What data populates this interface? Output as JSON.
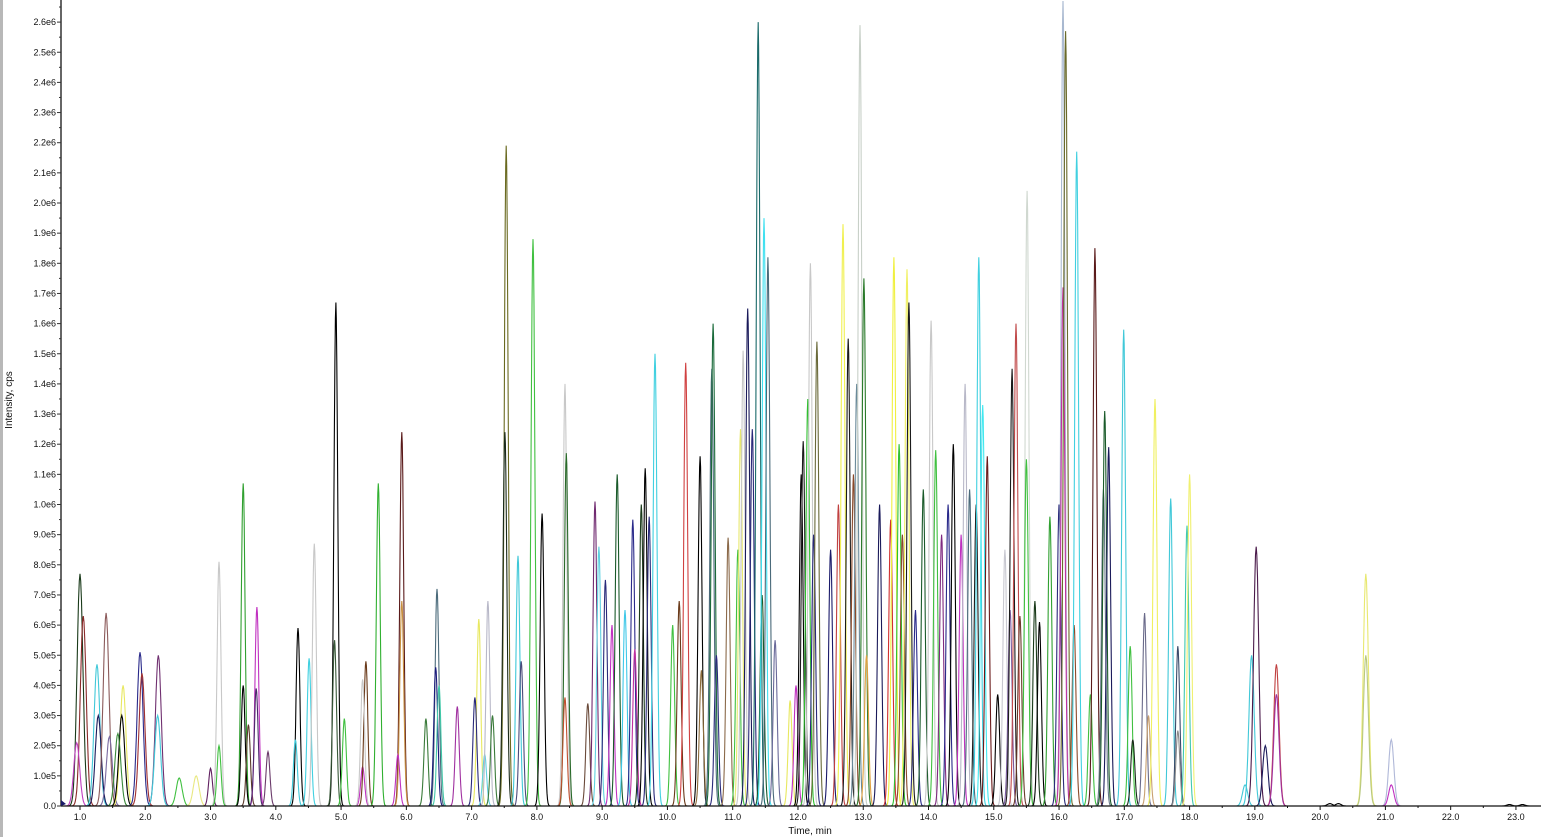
{
  "chart_data": {
    "type": "line",
    "title": "",
    "xlabel": "Time, min",
    "ylabel": "Intensity, cps",
    "xlim": [
      0.69,
      23.4
    ],
    "ylim": [
      0,
      2670000
    ],
    "grid": false,
    "legend": "none",
    "x_ticks": [
      "1.0",
      "2.0",
      "3.0",
      "4.0",
      "5.0",
      "6.0",
      "7.0",
      "8.0",
      "9.0",
      "10.0",
      "11.0",
      "12.0",
      "13.0",
      "14.0",
      "15.0",
      "16.0",
      "17.0",
      "18.0",
      "19.0",
      "20.0",
      "21.0",
      "22.0",
      "23.0"
    ],
    "y_ticks": [
      "0.0",
      "1.0e5",
      "2.0e5",
      "3.0e5",
      "4.0e5",
      "5.0e5",
      "6.0e5",
      "7.0e5",
      "8.0e5",
      "9.0e5",
      "1.0e6",
      "1.1e6",
      "1.2e6",
      "1.3e6",
      "1.4e6",
      "1.5e6",
      "1.6e6",
      "1.7e6",
      "1.8e6",
      "1.9e6",
      "2.0e6",
      "2.1e6",
      "2.2e6",
      "2.3e6",
      "2.4e6",
      "2.5e6",
      "2.6e6"
    ],
    "peaks": [
      {
        "t": 1.0,
        "h": 770000,
        "c": "#1a3a1a"
      },
      {
        "t": 1.05,
        "h": 630000,
        "c": "#8b2a2a"
      },
      {
        "t": 0.95,
        "h": 210000,
        "c": "#c040c0"
      },
      {
        "t": 1.26,
        "h": 470000,
        "c": "#40c8d8"
      },
      {
        "t": 1.28,
        "h": 300000,
        "c": "#1a1a5a"
      },
      {
        "t": 1.4,
        "h": 640000,
        "c": "#8b5a5a"
      },
      {
        "t": 1.45,
        "h": 230000,
        "c": "#7a6aa0"
      },
      {
        "t": 1.66,
        "h": 400000,
        "c": "#e8e860"
      },
      {
        "t": 1.64,
        "h": 300000,
        "c": "#000000"
      },
      {
        "t": 1.58,
        "h": 240000,
        "c": "#3a8a3a"
      },
      {
        "t": 1.92,
        "h": 510000,
        "c": "#2a2a8a"
      },
      {
        "t": 1.95,
        "h": 440000,
        "c": "#a03030"
      },
      {
        "t": 2.2,
        "h": 500000,
        "c": "#703070"
      },
      {
        "t": 2.19,
        "h": 300000,
        "c": "#40c8d8"
      },
      {
        "t": 2.52,
        "h": 93000,
        "c": "#40c040"
      },
      {
        "t": 2.78,
        "h": 100000,
        "c": "#e8e880"
      },
      {
        "t": 3.0,
        "h": 125000,
        "c": "#602060"
      },
      {
        "t": 3.13,
        "h": 810000,
        "c": "#c8c8c8"
      },
      {
        "t": 3.13,
        "h": 200000,
        "c": "#40c040"
      },
      {
        "t": 3.5,
        "h": 1070000,
        "c": "#30a030"
      },
      {
        "t": 3.5,
        "h": 400000,
        "c": "#000000"
      },
      {
        "t": 3.58,
        "h": 270000,
        "c": "#5a3a2a"
      },
      {
        "t": 3.71,
        "h": 660000,
        "c": "#c030c0"
      },
      {
        "t": 3.7,
        "h": 390000,
        "c": "#4a2a6a"
      },
      {
        "t": 3.88,
        "h": 180000,
        "c": "#6a3a6a"
      },
      {
        "t": 4.34,
        "h": 590000,
        "c": "#000000"
      },
      {
        "t": 4.3,
        "h": 220000,
        "c": "#40c8d8"
      },
      {
        "t": 4.51,
        "h": 490000,
        "c": "#40d0e0"
      },
      {
        "t": 4.59,
        "h": 870000,
        "c": "#c8c8c8"
      },
      {
        "t": 4.92,
        "h": 1670000,
        "c": "#000000"
      },
      {
        "t": 4.9,
        "h": 550000,
        "c": "#3a5a3a"
      },
      {
        "t": 5.05,
        "h": 290000,
        "c": "#40c040"
      },
      {
        "t": 5.33,
        "h": 130000,
        "c": "#c030c0"
      },
      {
        "t": 5.38,
        "h": 480000,
        "c": "#6a3a1a"
      },
      {
        "t": 5.33,
        "h": 420000,
        "c": "#c8c8c8"
      },
      {
        "t": 5.57,
        "h": 1070000,
        "c": "#30b030"
      },
      {
        "t": 5.93,
        "h": 1240000,
        "c": "#5a1a1a"
      },
      {
        "t": 5.93,
        "h": 680000,
        "c": "#c89040"
      },
      {
        "t": 5.87,
        "h": 170000,
        "c": "#c030c0"
      },
      {
        "t": 6.3,
        "h": 290000,
        "c": "#3a7a3a"
      },
      {
        "t": 6.47,
        "h": 720000,
        "c": "#4a6a7a"
      },
      {
        "t": 6.45,
        "h": 460000,
        "c": "#1a1a7a"
      },
      {
        "t": 6.5,
        "h": 400000,
        "c": "#40c8a8"
      },
      {
        "t": 6.78,
        "h": 330000,
        "c": "#a030a0"
      },
      {
        "t": 7.11,
        "h": 620000,
        "c": "#e8e860"
      },
      {
        "t": 7.05,
        "h": 360000,
        "c": "#2a2a7a"
      },
      {
        "t": 7.2,
        "h": 170000,
        "c": "#60d0e0"
      },
      {
        "t": 7.25,
        "h": 680000,
        "c": "#b8b8c8"
      },
      {
        "t": 7.32,
        "h": 300000,
        "c": "#3a7a3a"
      },
      {
        "t": 7.53,
        "h": 2190000,
        "c": "#6a6a20"
      },
      {
        "t": 7.51,
        "h": 1240000,
        "c": "#1a2a1a"
      },
      {
        "t": 7.71,
        "h": 830000,
        "c": "#40c8d8"
      },
      {
        "t": 7.76,
        "h": 480000,
        "c": "#4a4a7a"
      },
      {
        "t": 7.94,
        "h": 1880000,
        "c": "#40c040"
      },
      {
        "t": 8.08,
        "h": 970000,
        "c": "#000000"
      },
      {
        "t": 8.43,
        "h": 1400000,
        "c": "#c8c8c8"
      },
      {
        "t": 8.45,
        "h": 1170000,
        "c": "#2a6a2a"
      },
      {
        "t": 8.43,
        "h": 360000,
        "c": "#c05030"
      },
      {
        "t": 8.78,
        "h": 340000,
        "c": "#6a4a3a"
      },
      {
        "t": 8.89,
        "h": 1010000,
        "c": "#702a70"
      },
      {
        "t": 8.95,
        "h": 860000,
        "c": "#60d0e0"
      },
      {
        "t": 9.05,
        "h": 750000,
        "c": "#2a2a7a"
      },
      {
        "t": 9.15,
        "h": 600000,
        "c": "#c030c0"
      },
      {
        "t": 9.23,
        "h": 1100000,
        "c": "#1a5a2a"
      },
      {
        "t": 9.35,
        "h": 650000,
        "c": "#40c8e8"
      },
      {
        "t": 9.47,
        "h": 950000,
        "c": "#2a2a8a"
      },
      {
        "t": 9.5,
        "h": 520000,
        "c": "#c030a0"
      },
      {
        "t": 9.6,
        "h": 1000000,
        "c": "#1a3a1a"
      },
      {
        "t": 9.66,
        "h": 1120000,
        "c": "#000000"
      },
      {
        "t": 9.72,
        "h": 960000,
        "c": "#2a2a7a"
      },
      {
        "t": 9.81,
        "h": 1500000,
        "c": "#40d0e0"
      },
      {
        "t": 10.08,
        "h": 600000,
        "c": "#40c040"
      },
      {
        "t": 10.18,
        "h": 680000,
        "c": "#6a3a1a"
      },
      {
        "t": 10.28,
        "h": 1470000,
        "c": "#d04040"
      },
      {
        "t": 10.5,
        "h": 1160000,
        "c": "#000000"
      },
      {
        "t": 10.52,
        "h": 450000,
        "c": "#8b6a3a"
      },
      {
        "t": 10.68,
        "h": 1450000,
        "c": "#4a6a7a"
      },
      {
        "t": 10.7,
        "h": 1600000,
        "c": "#1a6a3a"
      },
      {
        "t": 10.75,
        "h": 500000,
        "c": "#2a2a7a"
      },
      {
        "t": 10.93,
        "h": 890000,
        "c": "#8b6a4a"
      },
      {
        "t": 11.08,
        "h": 850000,
        "c": "#40c040"
      },
      {
        "t": 11.12,
        "h": 1250000,
        "c": "#e8e870"
      },
      {
        "t": 11.16,
        "h": 1510000,
        "c": "#c8c8c8"
      },
      {
        "t": 11.23,
        "h": 1650000,
        "c": "#1a1a5a"
      },
      {
        "t": 11.3,
        "h": 1250000,
        "c": "#2a2a7a"
      },
      {
        "t": 11.39,
        "h": 2600000,
        "c": "#1a6a6a"
      },
      {
        "t": 11.45,
        "h": 700000,
        "c": "#1a5a2a"
      },
      {
        "t": 11.48,
        "h": 1950000,
        "c": "#40e0f0"
      },
      {
        "t": 11.54,
        "h": 1820000,
        "c": "#4a6a7a"
      },
      {
        "t": 11.65,
        "h": 550000,
        "c": "#6a6a9a"
      },
      {
        "t": 11.88,
        "h": 350000,
        "c": "#e8e860"
      },
      {
        "t": 11.97,
        "h": 400000,
        "c": "#c030c0"
      },
      {
        "t": 12.05,
        "h": 1100000,
        "c": "#000000"
      },
      {
        "t": 12.08,
        "h": 1210000,
        "c": "#1a1a1a"
      },
      {
        "t": 12.15,
        "h": 1350000,
        "c": "#30c030"
      },
      {
        "t": 12.19,
        "h": 1800000,
        "c": "#c8c8c8"
      },
      {
        "t": 12.24,
        "h": 900000,
        "c": "#2a2a7a"
      },
      {
        "t": 12.29,
        "h": 1540000,
        "c": "#6a6a3a"
      },
      {
        "t": 12.5,
        "h": 850000,
        "c": "#1a1a6a"
      },
      {
        "t": 12.62,
        "h": 1000000,
        "c": "#c04040"
      },
      {
        "t": 12.69,
        "h": 1930000,
        "c": "#f0f050"
      },
      {
        "t": 12.77,
        "h": 1550000,
        "c": "#1a1a1a"
      },
      {
        "t": 12.85,
        "h": 1100000,
        "c": "#8b4a2a"
      },
      {
        "t": 12.9,
        "h": 1400000,
        "c": "#6a8a9a"
      },
      {
        "t": 12.95,
        "h": 2590000,
        "c": "#c8d0c8"
      },
      {
        "t": 13.01,
        "h": 1750000,
        "c": "#2a7a2a"
      },
      {
        "t": 13.05,
        "h": 500000,
        "c": "#e0a040"
      },
      {
        "t": 13.25,
        "h": 1000000,
        "c": "#1a1a5a"
      },
      {
        "t": 13.42,
        "h": 950000,
        "c": "#d03030"
      },
      {
        "t": 13.47,
        "h": 1820000,
        "c": "#f0f040"
      },
      {
        "t": 13.55,
        "h": 1200000,
        "c": "#30c030"
      },
      {
        "t": 13.6,
        "h": 900000,
        "c": "#8b4a2a"
      },
      {
        "t": 13.67,
        "h": 1780000,
        "c": "#f0f060"
      },
      {
        "t": 13.7,
        "h": 1670000,
        "c": "#1a1a1a"
      },
      {
        "t": 13.8,
        "h": 650000,
        "c": "#2a2a8a"
      },
      {
        "t": 13.92,
        "h": 1050000,
        "c": "#1a5a2a"
      },
      {
        "t": 14.04,
        "h": 1610000,
        "c": "#c8c8c8"
      },
      {
        "t": 14.11,
        "h": 1180000,
        "c": "#40c040"
      },
      {
        "t": 14.2,
        "h": 900000,
        "c": "#802a80"
      },
      {
        "t": 14.3,
        "h": 1000000,
        "c": "#2a2a8a"
      },
      {
        "t": 14.38,
        "h": 1200000,
        "c": "#000000"
      },
      {
        "t": 14.5,
        "h": 900000,
        "c": "#c030c0"
      },
      {
        "t": 14.56,
        "h": 1400000,
        "c": "#b8b8c8"
      },
      {
        "t": 14.63,
        "h": 1050000,
        "c": "#4a6a7a"
      },
      {
        "t": 14.73,
        "h": 1000000,
        "c": "#1a1a1a"
      },
      {
        "t": 14.77,
        "h": 1820000,
        "c": "#40d0e0"
      },
      {
        "t": 14.83,
        "h": 1330000,
        "c": "#40e8f0"
      },
      {
        "t": 14.9,
        "h": 1160000,
        "c": "#6a1a1a"
      },
      {
        "t": 15.06,
        "h": 370000,
        "c": "#000000"
      },
      {
        "t": 15.17,
        "h": 850000,
        "c": "#c8c8d0"
      },
      {
        "t": 15.25,
        "h": 650000,
        "c": "#7a5aa0"
      },
      {
        "t": 15.28,
        "h": 1450000,
        "c": "#1a1a1a"
      },
      {
        "t": 15.34,
        "h": 1600000,
        "c": "#c04a4a"
      },
      {
        "t": 15.4,
        "h": 630000,
        "c": "#6a3a2a"
      },
      {
        "t": 15.51,
        "h": 2040000,
        "c": "#d0d8d0"
      },
      {
        "t": 15.5,
        "h": 1150000,
        "c": "#40c040"
      },
      {
        "t": 15.63,
        "h": 680000,
        "c": "#1a3a1a"
      },
      {
        "t": 15.7,
        "h": 610000,
        "c": "#000000"
      },
      {
        "t": 15.86,
        "h": 960000,
        "c": "#30a030"
      },
      {
        "t": 16.0,
        "h": 1000000,
        "c": "#2a2a7a"
      },
      {
        "t": 16.06,
        "h": 2670000,
        "c": "#a8b8d0"
      },
      {
        "t": 16.06,
        "h": 1720000,
        "c": "#c030a0"
      },
      {
        "t": 16.1,
        "h": 2570000,
        "c": "#6a6a2a"
      },
      {
        "t": 16.23,
        "h": 600000,
        "c": "#8b4a2a"
      },
      {
        "t": 16.27,
        "h": 2170000,
        "c": "#40d0e0"
      },
      {
        "t": 16.48,
        "h": 370000,
        "c": "#40c040"
      },
      {
        "t": 16.55,
        "h": 1850000,
        "c": "#5a1a1a"
      },
      {
        "t": 16.68,
        "h": 1050000,
        "c": "#6a7a8a"
      },
      {
        "t": 16.7,
        "h": 1310000,
        "c": "#1a5a2a"
      },
      {
        "t": 16.76,
        "h": 1190000,
        "c": "#1a1a5a"
      },
      {
        "t": 16.99,
        "h": 1580000,
        "c": "#40c8d8"
      },
      {
        "t": 17.09,
        "h": 530000,
        "c": "#40c040"
      },
      {
        "t": 17.13,
        "h": 220000,
        "c": "#1a2a1a"
      },
      {
        "t": 17.31,
        "h": 640000,
        "c": "#6a6a8a"
      },
      {
        "t": 17.37,
        "h": 300000,
        "c": "#c8a070"
      },
      {
        "t": 17.47,
        "h": 1350000,
        "c": "#f0f060"
      },
      {
        "t": 17.71,
        "h": 1020000,
        "c": "#40c8d8"
      },
      {
        "t": 17.82,
        "h": 530000,
        "c": "#3a4a6a"
      },
      {
        "t": 17.82,
        "h": 250000,
        "c": "#8a8a8a"
      },
      {
        "t": 17.96,
        "h": 930000,
        "c": "#40c8b0"
      },
      {
        "t": 18.0,
        "h": 1100000,
        "c": "#f0f070"
      },
      {
        "t": 18.85,
        "h": 70000,
        "c": "#40c8d8"
      },
      {
        "t": 18.95,
        "h": 500000,
        "c": "#40c8d8"
      },
      {
        "t": 19.02,
        "h": 860000,
        "c": "#4a1a4a"
      },
      {
        "t": 19.16,
        "h": 200000,
        "c": "#1a1a5a"
      },
      {
        "t": 19.33,
        "h": 470000,
        "c": "#c04040"
      },
      {
        "t": 19.33,
        "h": 370000,
        "c": "#a030a0"
      },
      {
        "t": 20.15,
        "h": 8000,
        "c": "#000000"
      },
      {
        "t": 20.28,
        "h": 8000,
        "c": "#000000"
      },
      {
        "t": 20.7,
        "h": 770000,
        "c": "#e8e870"
      },
      {
        "t": 20.7,
        "h": 500000,
        "c": "#b8c880"
      },
      {
        "t": 21.09,
        "h": 220000,
        "c": "#b0b8d8"
      },
      {
        "t": 21.09,
        "h": 70000,
        "c": "#c030c0"
      },
      {
        "t": 22.9,
        "h": 5000,
        "c": "#000000"
      },
      {
        "t": 23.1,
        "h": 5000,
        "c": "#000000"
      }
    ]
  }
}
